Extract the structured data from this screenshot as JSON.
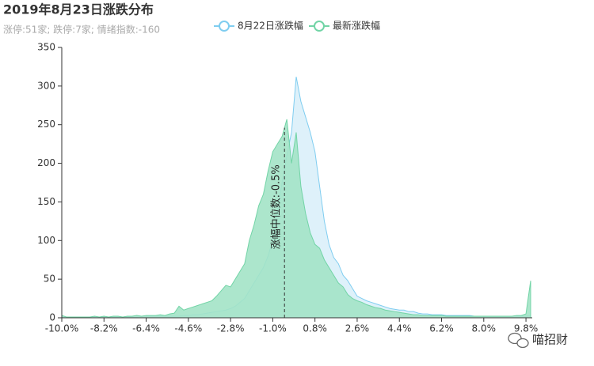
{
  "chart_data": {
    "type": "area",
    "title": "2019年8月23日涨跌分布",
    "subtitle": "涨停:51家; 跌停:7家; 情绪指数:-160",
    "watermark": "喵招财",
    "x": [
      -10,
      -9.8,
      -9.6,
      -9.4,
      -9.2,
      -9,
      -8.8,
      -8.6,
      -8.4,
      -8.2,
      -8,
      -7.8,
      -7.6,
      -7.4,
      -7.2,
      -7,
      -6.8,
      -6.6,
      -6.4,
      -6.2,
      -6,
      -5.8,
      -5.6,
      -5.4,
      -5.2,
      -5,
      -4.8,
      -4.6,
      -4.4,
      -4.2,
      -4,
      -3.8,
      -3.6,
      -3.4,
      -3.2,
      -3,
      -2.8,
      -2.6,
      -2.4,
      -2.2,
      -2,
      -1.8,
      -1.6,
      -1.4,
      -1.2,
      -1,
      -0.8,
      -0.6,
      -0.4,
      -0.2,
      0,
      0.2,
      0.4,
      0.6,
      0.8,
      1,
      1.2,
      1.4,
      1.6,
      1.8,
      2,
      2.2,
      2.4,
      2.6,
      2.8,
      3,
      3.2,
      3.4,
      3.6,
      3.8,
      4,
      4.2,
      4.4,
      4.6,
      4.8,
      5,
      5.2,
      5.4,
      5.6,
      5.8,
      6,
      6.2,
      6.4,
      6.6,
      6.8,
      7,
      7.2,
      7.4,
      7.6,
      7.8,
      8,
      8.2,
      8.4,
      8.6,
      8.8,
      9,
      9.2,
      9.4,
      9.6,
      9.8,
      10
    ],
    "series": [
      {
        "name": "8月22日涨跌幅",
        "color": "#7fcdf0",
        "fill": "#daf0fa",
        "values": [
          1,
          1,
          1,
          1,
          1,
          1,
          1,
          1,
          1,
          1,
          1,
          1,
          1,
          1,
          1,
          1,
          1,
          2,
          2,
          2,
          2,
          2,
          2,
          2,
          2,
          2,
          3,
          3,
          4,
          4,
          5,
          6,
          7,
          8,
          9,
          10,
          12,
          15,
          20,
          25,
          35,
          45,
          55,
          65,
          80,
          100,
          140,
          175,
          210,
          240,
          312,
          280,
          260,
          240,
          215,
          170,
          125,
          95,
          78,
          70,
          55,
          48,
          38,
          28,
          25,
          22,
          20,
          18,
          16,
          14,
          12,
          11,
          10,
          10,
          8,
          8,
          6,
          5,
          5,
          4,
          4,
          4,
          3,
          3,
          3,
          3,
          3,
          3,
          2,
          2,
          2,
          2,
          2,
          2,
          2,
          2,
          2,
          2,
          2,
          2,
          3
        ]
      },
      {
        "name": "最新涨跌幅",
        "color": "#72d4a6",
        "fill": "#a3e3c6",
        "values": [
          3,
          1,
          1,
          1,
          1,
          1,
          1,
          2,
          1,
          2,
          1,
          2,
          2,
          1,
          2,
          2,
          3,
          2,
          3,
          3,
          3,
          4,
          3,
          5,
          6,
          15,
          10,
          12,
          14,
          16,
          18,
          20,
          22,
          28,
          35,
          42,
          40,
          50,
          60,
          70,
          100,
          120,
          145,
          160,
          190,
          215,
          225,
          235,
          257,
          200,
          240,
          170,
          135,
          110,
          95,
          90,
          75,
          65,
          55,
          45,
          40,
          30,
          25,
          22,
          20,
          17,
          15,
          13,
          12,
          10,
          9,
          8,
          7,
          6,
          5,
          4,
          4,
          3,
          3,
          3,
          3,
          3,
          2,
          2,
          2,
          2,
          2,
          2,
          2,
          2,
          2,
          2,
          2,
          2,
          2,
          2,
          2,
          3,
          3,
          5,
          48
        ]
      }
    ],
    "median_line": {
      "value": -0.5,
      "label": "涨幅中位数:-0.5%"
    },
    "xlim": [
      -10,
      10
    ],
    "xticks": [
      {
        "value": -10,
        "label": "-10.0%"
      },
      {
        "value": -8.2,
        "label": "-8.2%"
      },
      {
        "value": -6.4,
        "label": "-6.4%"
      },
      {
        "value": -4.6,
        "label": "-4.6%"
      },
      {
        "value": -2.8,
        "label": "-2.8%"
      },
      {
        "value": -1,
        "label": "-1.0%"
      },
      {
        "value": 0.8,
        "label": "0.8%"
      },
      {
        "value": 2.6,
        "label": "2.6%"
      },
      {
        "value": 4.4,
        "label": "4.4%"
      },
      {
        "value": 6.2,
        "label": "6.2%"
      },
      {
        "value": 8,
        "label": "8.0%"
      },
      {
        "value": 9.8,
        "label": "9.8%"
      }
    ],
    "ylim": [
      0,
      350
    ],
    "yticks": [
      0,
      50,
      100,
      150,
      200,
      250,
      300,
      350
    ],
    "grid": false
  }
}
